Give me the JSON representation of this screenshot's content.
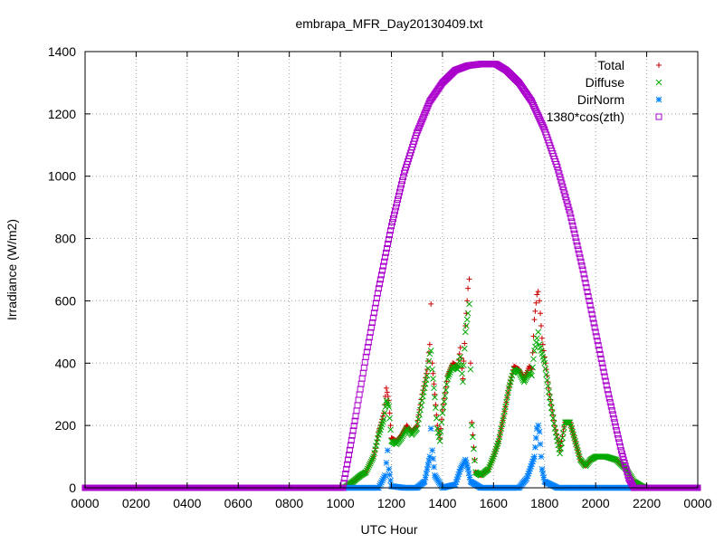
{
  "chart_data": {
    "type": "scatter",
    "title": "embrapa_MFR_Day20130409.txt",
    "xlabel": "UTC Hour",
    "ylabel": "Irradiance (W/m2)",
    "xlim": [
      0,
      24
    ],
    "ylim": [
      0,
      1400
    ],
    "grid": true,
    "legend_position": "top-right",
    "x_ticks": [
      {
        "value": 0,
        "label": "0000"
      },
      {
        "value": 2,
        "label": "0200"
      },
      {
        "value": 4,
        "label": "0400"
      },
      {
        "value": 6,
        "label": "0600"
      },
      {
        "value": 8,
        "label": "0800"
      },
      {
        "value": 10,
        "label": "1000"
      },
      {
        "value": 12,
        "label": "1200"
      },
      {
        "value": 14,
        "label": "1400"
      },
      {
        "value": 16,
        "label": "1600"
      },
      {
        "value": 18,
        "label": "1800"
      },
      {
        "value": 20,
        "label": "2000"
      },
      {
        "value": 22,
        "label": "2200"
      },
      {
        "value": 24,
        "label": "0000"
      }
    ],
    "y_ticks": [
      0,
      200,
      400,
      600,
      800,
      1000,
      1200,
      1400
    ],
    "series": [
      {
        "name": "Total",
        "color": "#cc0000",
        "marker": "plus",
        "points": [
          [
            0,
            0
          ],
          [
            2,
            0
          ],
          [
            4,
            0
          ],
          [
            6,
            0
          ],
          [
            8,
            0
          ],
          [
            10,
            0
          ],
          [
            10.2,
            2
          ],
          [
            10.5,
            20
          ],
          [
            10.8,
            40
          ],
          [
            11.0,
            50
          ],
          [
            11.3,
            100
          ],
          [
            11.5,
            180
          ],
          [
            11.7,
            240
          ],
          [
            11.8,
            320
          ],
          [
            11.9,
            280
          ],
          [
            12.0,
            160
          ],
          [
            12.2,
            150
          ],
          [
            12.4,
            170
          ],
          [
            12.6,
            200
          ],
          [
            12.8,
            180
          ],
          [
            13.0,
            200
          ],
          [
            13.2,
            300
          ],
          [
            13.4,
            380
          ],
          [
            13.5,
            460
          ],
          [
            13.55,
            590
          ],
          [
            13.6,
            400
          ],
          [
            13.7,
            300
          ],
          [
            13.8,
            200
          ],
          [
            13.9,
            160
          ],
          [
            14.0,
            250
          ],
          [
            14.2,
            360
          ],
          [
            14.4,
            400
          ],
          [
            14.6,
            390
          ],
          [
            14.7,
            450
          ],
          [
            14.8,
            350
          ],
          [
            14.9,
            520
          ],
          [
            15.0,
            640
          ],
          [
            15.05,
            670
          ],
          [
            15.1,
            400
          ],
          [
            15.15,
            210
          ],
          [
            15.3,
            50
          ],
          [
            15.5,
            40
          ],
          [
            15.8,
            60
          ],
          [
            16.0,
            100
          ],
          [
            16.2,
            150
          ],
          [
            16.4,
            230
          ],
          [
            16.6,
            320
          ],
          [
            16.8,
            390
          ],
          [
            17.0,
            380
          ],
          [
            17.2,
            350
          ],
          [
            17.4,
            390
          ],
          [
            17.5,
            380
          ],
          [
            17.6,
            540
          ],
          [
            17.7,
            620
          ],
          [
            17.75,
            630
          ],
          [
            17.8,
            600
          ],
          [
            17.9,
            480
          ],
          [
            18.0,
            420
          ],
          [
            18.2,
            300
          ],
          [
            18.4,
            200
          ],
          [
            18.6,
            120
          ],
          [
            18.8,
            210
          ],
          [
            19.0,
            210
          ],
          [
            19.2,
            150
          ],
          [
            19.4,
            90
          ],
          [
            19.6,
            70
          ],
          [
            19.8,
            90
          ],
          [
            20.0,
            100
          ],
          [
            20.4,
            100
          ],
          [
            20.8,
            90
          ],
          [
            21.2,
            60
          ],
          [
            21.5,
            20
          ],
          [
            21.8,
            5
          ],
          [
            22.0,
            0
          ],
          [
            23,
            0
          ],
          [
            24,
            0
          ]
        ]
      },
      {
        "name": "Diffuse",
        "color": "#00aa00",
        "marker": "cross",
        "points": [
          [
            0,
            0
          ],
          [
            2,
            0
          ],
          [
            4,
            0
          ],
          [
            6,
            0
          ],
          [
            8,
            0
          ],
          [
            10,
            0
          ],
          [
            10.2,
            2
          ],
          [
            10.5,
            20
          ],
          [
            10.8,
            40
          ],
          [
            11.0,
            50
          ],
          [
            11.3,
            100
          ],
          [
            11.5,
            170
          ],
          [
            11.7,
            220
          ],
          [
            11.8,
            280
          ],
          [
            11.9,
            260
          ],
          [
            12.0,
            150
          ],
          [
            12.2,
            140
          ],
          [
            12.4,
            160
          ],
          [
            12.6,
            190
          ],
          [
            12.8,
            170
          ],
          [
            13.0,
            190
          ],
          [
            13.2,
            280
          ],
          [
            13.4,
            360
          ],
          [
            13.5,
            430
          ],
          [
            13.55,
            440
          ],
          [
            13.6,
            380
          ],
          [
            13.7,
            290
          ],
          [
            13.8,
            190
          ],
          [
            13.9,
            150
          ],
          [
            14.0,
            240
          ],
          [
            14.2,
            350
          ],
          [
            14.4,
            390
          ],
          [
            14.6,
            380
          ],
          [
            14.7,
            420
          ],
          [
            14.8,
            340
          ],
          [
            14.9,
            500
          ],
          [
            15.0,
            560
          ],
          [
            15.05,
            590
          ],
          [
            15.1,
            380
          ],
          [
            15.15,
            200
          ],
          [
            15.3,
            50
          ],
          [
            15.5,
            40
          ],
          [
            15.8,
            60
          ],
          [
            16.0,
            100
          ],
          [
            16.2,
            150
          ],
          [
            16.4,
            230
          ],
          [
            16.6,
            320
          ],
          [
            16.8,
            380
          ],
          [
            17.0,
            370
          ],
          [
            17.2,
            340
          ],
          [
            17.4,
            370
          ],
          [
            17.5,
            360
          ],
          [
            17.6,
            440
          ],
          [
            17.7,
            480
          ],
          [
            17.75,
            500
          ],
          [
            17.8,
            460
          ],
          [
            17.9,
            430
          ],
          [
            18.0,
            400
          ],
          [
            18.2,
            290
          ],
          [
            18.4,
            190
          ],
          [
            18.6,
            110
          ],
          [
            18.8,
            210
          ],
          [
            19.0,
            210
          ],
          [
            19.2,
            150
          ],
          [
            19.4,
            90
          ],
          [
            19.6,
            70
          ],
          [
            19.8,
            90
          ],
          [
            20.0,
            100
          ],
          [
            20.4,
            100
          ],
          [
            20.8,
            90
          ],
          [
            21.2,
            60
          ],
          [
            21.5,
            20
          ],
          [
            21.8,
            5
          ],
          [
            22.0,
            0
          ],
          [
            23,
            0
          ],
          [
            24,
            0
          ]
        ]
      },
      {
        "name": "DirNorm",
        "color": "#0080ff",
        "marker": "star",
        "points": [
          [
            0,
            0
          ],
          [
            2,
            0
          ],
          [
            4,
            0
          ],
          [
            6,
            0
          ],
          [
            8,
            0
          ],
          [
            10,
            0
          ],
          [
            10.5,
            0
          ],
          [
            11.0,
            0
          ],
          [
            11.5,
            0
          ],
          [
            11.75,
            40
          ],
          [
            11.8,
            80
          ],
          [
            11.85,
            120
          ],
          [
            11.9,
            60
          ],
          [
            12.0,
            5
          ],
          [
            12.5,
            0
          ],
          [
            13.0,
            0
          ],
          [
            13.3,
            20
          ],
          [
            13.5,
            100
          ],
          [
            13.55,
            190
          ],
          [
            13.6,
            120
          ],
          [
            13.7,
            40
          ],
          [
            14.0,
            0
          ],
          [
            14.5,
            10
          ],
          [
            14.7,
            60
          ],
          [
            14.9,
            90
          ],
          [
            15.0,
            60
          ],
          [
            15.1,
            20
          ],
          [
            15.5,
            0
          ],
          [
            16.0,
            0
          ],
          [
            16.5,
            0
          ],
          [
            17.0,
            0
          ],
          [
            17.3,
            30
          ],
          [
            17.6,
            100
          ],
          [
            17.7,
            190
          ],
          [
            17.75,
            200
          ],
          [
            17.8,
            180
          ],
          [
            17.9,
            60
          ],
          [
            18.0,
            20
          ],
          [
            18.5,
            0
          ],
          [
            19.0,
            0
          ],
          [
            20.0,
            0
          ],
          [
            21.0,
            0
          ],
          [
            22.0,
            0
          ],
          [
            23,
            0
          ],
          [
            24,
            0
          ]
        ]
      },
      {
        "name": "1380*cos(zth)",
        "color": "#aa00cc",
        "marker": "square",
        "points": [
          [
            0,
            0
          ],
          [
            2,
            0
          ],
          [
            4,
            0
          ],
          [
            6,
            0
          ],
          [
            8,
            0
          ],
          [
            10,
            0
          ],
          [
            10.1,
            0
          ],
          [
            10.3,
            90
          ],
          [
            10.6,
            230
          ],
          [
            11.0,
            420
          ],
          [
            11.5,
            640
          ],
          [
            12.0,
            840
          ],
          [
            12.5,
            1010
          ],
          [
            13.0,
            1140
          ],
          [
            13.5,
            1240
          ],
          [
            14.0,
            1300
          ],
          [
            14.5,
            1340
          ],
          [
            15.0,
            1355
          ],
          [
            15.5,
            1360
          ],
          [
            16.1,
            1360
          ],
          [
            16.5,
            1340
          ],
          [
            17.0,
            1300
          ],
          [
            17.5,
            1240
          ],
          [
            18.0,
            1150
          ],
          [
            18.5,
            1030
          ],
          [
            19.0,
            880
          ],
          [
            19.5,
            700
          ],
          [
            20.0,
            500
          ],
          [
            20.5,
            300
          ],
          [
            21.0,
            120
          ],
          [
            21.3,
            30
          ],
          [
            21.5,
            0
          ],
          [
            22,
            0
          ],
          [
            23,
            0
          ],
          [
            24,
            0
          ]
        ]
      }
    ]
  }
}
